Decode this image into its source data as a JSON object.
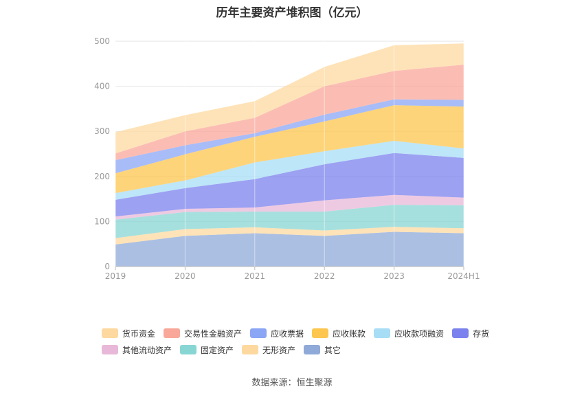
{
  "chart_data": {
    "type": "area",
    "stacked": true,
    "title": "历年主要资产堆积图（亿元）",
    "categories": [
      "2019",
      "2020",
      "2021",
      "2022",
      "2023",
      "2024H1"
    ],
    "y_ticks": [
      "0",
      "100",
      "200",
      "300",
      "400",
      "500"
    ],
    "ylim": [
      0,
      500
    ],
    "grid": true,
    "legend_position": "bottom",
    "series": [
      {
        "name": "其它",
        "color": "#8fa9d8",
        "values": [
          49,
          68,
          74,
          68,
          77,
          74
        ]
      },
      {
        "name": "无形资产",
        "color": "#fdd9a0",
        "values": [
          14,
          15,
          13,
          12,
          11,
          11
        ]
      },
      {
        "name": "固定资产",
        "color": "#88d6d3",
        "values": [
          41,
          38,
          35,
          42,
          49,
          51
        ]
      },
      {
        "name": "其他流动资产",
        "color": "#e8b8d8",
        "values": [
          7,
          7,
          9,
          25,
          22,
          17
        ]
      },
      {
        "name": "存货",
        "color": "#7b82ee",
        "values": [
          37,
          46,
          63,
          80,
          93,
          88
        ]
      },
      {
        "name": "应收款项融资",
        "color": "#a7ddf5",
        "values": [
          15,
          17,
          37,
          29,
          27,
          21
        ]
      },
      {
        "name": "应收账款",
        "color": "#fdc64e",
        "values": [
          44,
          58,
          57,
          66,
          79,
          93
        ]
      },
      {
        "name": "应收票据",
        "color": "#8ba6f5",
        "values": [
          29,
          20,
          8,
          15,
          13,
          15
        ]
      },
      {
        "name": "交易性金融资产",
        "color": "#f9a799",
        "values": [
          15,
          31,
          34,
          63,
          63,
          78
        ]
      },
      {
        "name": "货币资金",
        "color": "#fdd9a0",
        "values": [
          47,
          36,
          37,
          43,
          57,
          47
        ]
      }
    ]
  },
  "legend": {
    "row1": [
      {
        "label": "货币资金",
        "color": "#fdd9a0"
      },
      {
        "label": "交易性金融资产",
        "color": "#f9a799"
      },
      {
        "label": "应收票据",
        "color": "#8ba6f5"
      },
      {
        "label": "应收账款",
        "color": "#fdc64e"
      },
      {
        "label": "应收款项融资",
        "color": "#a7ddf5"
      },
      {
        "label": "存货",
        "color": "#7b82ee"
      }
    ],
    "row2": [
      {
        "label": "其他流动资产",
        "color": "#e8b8d8"
      },
      {
        "label": "固定资产",
        "color": "#88d6d3"
      },
      {
        "label": "无形资产",
        "color": "#fdd9a0"
      },
      {
        "label": "其它",
        "color": "#8fa9d8"
      }
    ]
  },
  "source": "数据来源：恒生聚源"
}
